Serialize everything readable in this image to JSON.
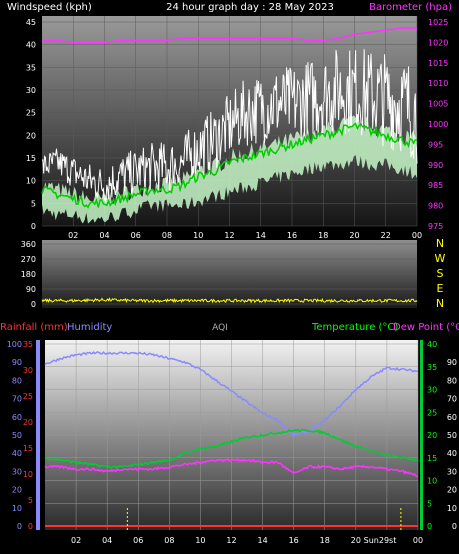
{
  "colors": {
    "wind_label": "#ffffff",
    "barometer": "#ff33ff",
    "wind": "#ffffff",
    "wind_avg": "#00cc00",
    "gust_fill": "#c8f7c8",
    "direction": "#ffff00",
    "rain": "#ff3333",
    "humidity": "#8a8aff",
    "aqi": "#aaaaaa",
    "temperature": "#00ff00",
    "dewpoint": "#ff33ff",
    "temp_line": "#00cc33",
    "sunrise": "#ffff00"
  },
  "top": {
    "left_title": "Windspeed (kph)",
    "center_title": "24 hour graph day : 28 May 2023",
    "right_title": "Barometer (hpa)",
    "left_ticks": [
      "0",
      "5",
      "10",
      "15",
      "20",
      "25",
      "30",
      "35",
      "40",
      "45"
    ],
    "right_ticks": [
      "975",
      "980",
      "985",
      "990",
      "995",
      "1000",
      "1005",
      "1010",
      "1015",
      "1020",
      "1025"
    ]
  },
  "middle": {
    "left_ticks": [
      "0",
      "90",
      "180",
      "270",
      "360"
    ],
    "compass": [
      "N",
      "W",
      "S",
      "E",
      "N"
    ]
  },
  "bottom": {
    "rain_label": "Rainfall (mm)",
    "humidity_label": "Humidity",
    "aqi_label": "AQI",
    "temp_label": "Temperature (°C)",
    "dew_label": "Dew Point (°C)",
    "humidity_ticks": [
      "0",
      "10",
      "20",
      "30",
      "40",
      "50",
      "60",
      "70",
      "80",
      "90",
      "100"
    ],
    "rain_ticks": [
      "0",
      "5",
      "10",
      "15",
      "20",
      "25",
      "30",
      "35"
    ],
    "temp_ticks": [
      "0",
      "5",
      "10",
      "15",
      "20",
      "25",
      "30",
      "35",
      "40"
    ],
    "dew_ticks": [
      "0",
      "10",
      "20",
      "30",
      "40",
      "50",
      "60",
      "70",
      "80",
      "90"
    ],
    "sun_label": "Sun29st"
  },
  "x_ticks": [
    "02",
    "04",
    "06",
    "08",
    "10",
    "12",
    "14",
    "16",
    "18",
    "20",
    "22",
    "00"
  ],
  "chart_data": [
    {
      "type": "line",
      "title": "24 hour graph day : 28 May 2023",
      "xlabel": "",
      "ylabel": "Windspeed (kph)",
      "x": [
        0,
        1,
        2,
        3,
        4,
        5,
        6,
        7,
        8,
        9,
        10,
        11,
        12,
        13,
        14,
        15,
        16,
        17,
        18,
        19,
        20,
        21,
        22,
        23,
        24
      ],
      "ylim": [
        0,
        45
      ],
      "y2lim": [
        975,
        1025
      ],
      "series": [
        {
          "name": "Barometer (hpa)",
          "axis": "right",
          "values": [
            1020.5,
            1020.5,
            1020,
            1020,
            1020,
            1020.5,
            1020.5,
            1020.5,
            1020.5,
            1021,
            1021,
            1021,
            1021,
            1021,
            1021,
            1021,
            1021,
            1020.5,
            1020.5,
            1021,
            1022,
            1022.5,
            1023,
            1023.5,
            1023.5
          ]
        },
        {
          "name": "Wind speed (kph)",
          "values": [
            13,
            14,
            12,
            10,
            9,
            11,
            12,
            13,
            13,
            14,
            17,
            19,
            22,
            25,
            26,
            27,
            27,
            28,
            29,
            30,
            30,
            29,
            28,
            27,
            25
          ]
        },
        {
          "name": "Average wind (kph)",
          "values": [
            8,
            7,
            6,
            5,
            5,
            6,
            7,
            8,
            8,
            9,
            11,
            12,
            14,
            15,
            16,
            17,
            18,
            19,
            20,
            21,
            22,
            21,
            20,
            19,
            18
          ]
        },
        {
          "name": "Wind lull (kph)",
          "values": [
            4,
            3,
            3,
            2,
            2,
            3,
            4,
            5,
            5,
            5,
            6,
            7,
            8,
            9,
            10,
            11,
            12,
            13,
            14,
            14,
            15,
            14,
            14,
            13,
            12
          ]
        }
      ]
    },
    {
      "type": "line",
      "ylabel": "Wind direction",
      "x": [
        0,
        2,
        4,
        6,
        8,
        10,
        12,
        14,
        16,
        18,
        20,
        22,
        24
      ],
      "ylim": [
        0,
        360
      ],
      "series": [
        {
          "name": "Wind direction (deg)",
          "values": [
            20,
            20,
            25,
            20,
            20,
            20,
            20,
            20,
            20,
            20,
            20,
            20,
            20
          ]
        }
      ]
    },
    {
      "type": "line",
      "x": [
        0,
        1,
        2,
        3,
        4,
        5,
        6,
        7,
        8,
        9,
        10,
        11,
        12,
        13,
        14,
        15,
        16,
        17,
        18,
        19,
        20,
        21,
        22,
        23,
        24
      ],
      "ylim": [
        0,
        100
      ],
      "y2lim": [
        0,
        40
      ],
      "series": [
        {
          "name": "Humidity",
          "axis": "left",
          "values": [
            89,
            92,
            94,
            95,
            95,
            95,
            95,
            94,
            92,
            90,
            86,
            80,
            74,
            68,
            62,
            58,
            50,
            52,
            58,
            66,
            75,
            82,
            87,
            86,
            85
          ]
        },
        {
          "name": "Temperature (°C)",
          "axis": "right",
          "values": [
            15,
            14.5,
            14,
            13.5,
            13,
            13,
            13.5,
            14,
            14.5,
            16,
            17,
            17.5,
            18.5,
            19.5,
            20,
            20.5,
            21,
            21,
            20.5,
            19,
            17.5,
            16.5,
            15.5,
            15,
            14.5
          ]
        },
        {
          "name": "Dew Point (°C)",
          "axis": "right",
          "values": [
            13,
            13,
            12.5,
            12.5,
            12,
            12.5,
            12.5,
            12.5,
            13,
            13.5,
            14,
            14.5,
            14.5,
            14.5,
            14,
            14,
            11.5,
            13,
            13,
            12.5,
            13,
            13,
            12.5,
            12,
            11
          ]
        },
        {
          "name": "Rainfall (mm)",
          "axis": "rain",
          "values": [
            0,
            0,
            0,
            0,
            0,
            0,
            0,
            0,
            0,
            0,
            0,
            0,
            0,
            0,
            0,
            0,
            0,
            0,
            0,
            0,
            0,
            0,
            0,
            0,
            0
          ]
        }
      ]
    }
  ]
}
